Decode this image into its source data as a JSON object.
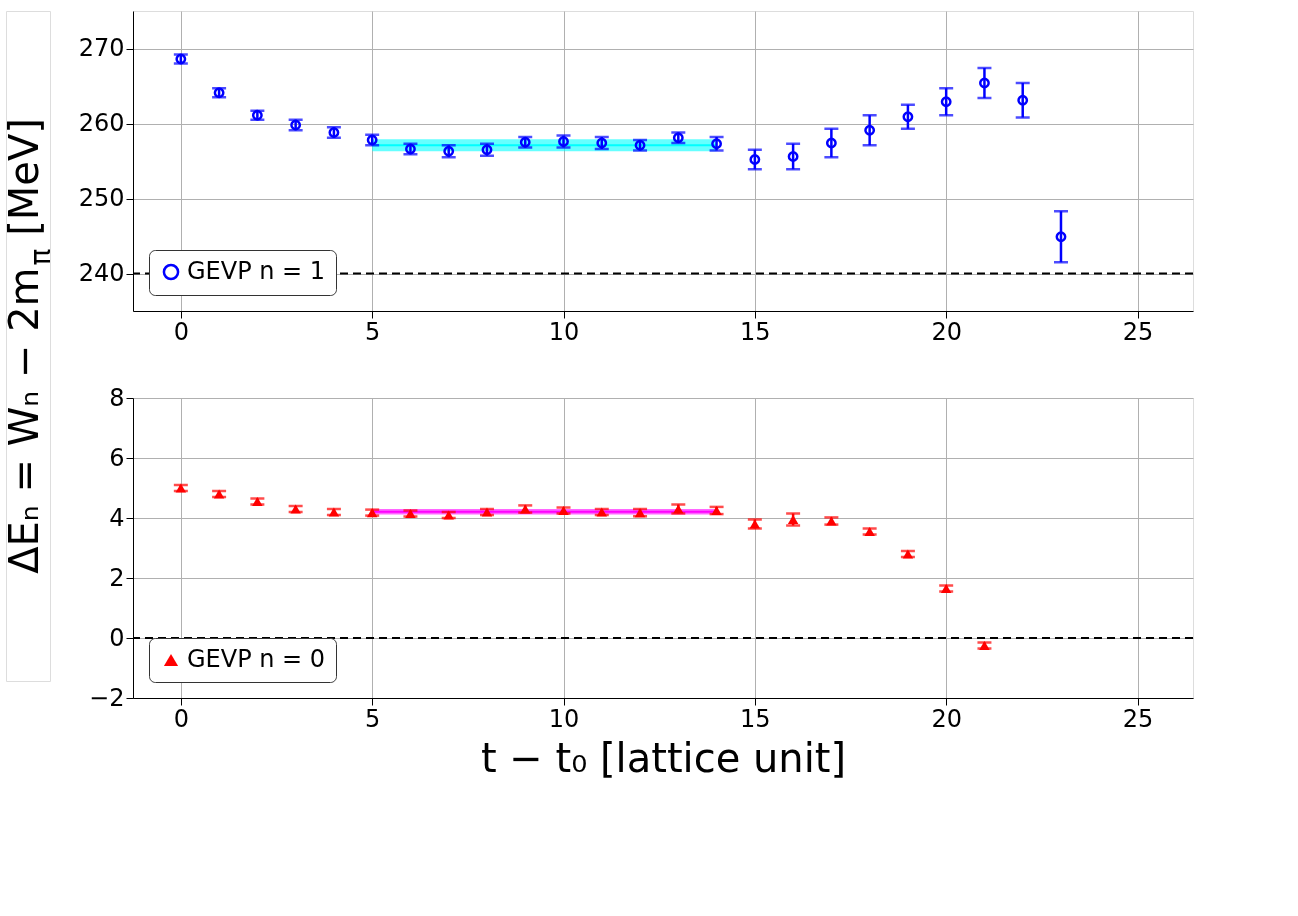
{
  "chart_data": [
    {
      "type": "scatter",
      "ylabel": "ΔEₙ = Wₙ − 2m$_{π}$ [MeV]",
      "xlim": [
        -1.25,
        26.45
      ],
      "xticks": [
        0,
        5,
        10,
        15,
        20,
        25
      ],
      "ylim": [
        235,
        275
      ],
      "yticks": [
        240,
        250,
        260,
        270
      ],
      "grid": true,
      "legend": "bottom left",
      "series": [
        {
          "type": "line",
          "color": "#00ffff",
          "x": [
            5,
            14
          ],
          "values": [
            257.1,
            257.1
          ],
          "lower": [
            256.3,
            256.3
          ],
          "upper": [
            257.9,
            257.9
          ]
        },
        {
          "name": "GEVP n = 1",
          "color": "#0000ff",
          "marker": "circle",
          "x": [
            0,
            1,
            2,
            3,
            4,
            5,
            6,
            7,
            8,
            9,
            10,
            11,
            12,
            13,
            14,
            15,
            16,
            17,
            18,
            19,
            20,
            21,
            22,
            23
          ],
          "values": [
            268.6,
            264.1,
            261.1,
            259.8,
            258.8,
            257.8,
            256.6,
            256.3,
            256.5,
            257.5,
            257.6,
            257.4,
            257.1,
            258.1,
            257.3,
            255.2,
            255.6,
            257.4,
            259.1,
            260.9,
            262.9,
            265.4,
            263.1,
            244.9
          ],
          "errors": [
            0.6,
            0.6,
            0.6,
            0.7,
            0.7,
            0.7,
            0.7,
            0.8,
            0.8,
            0.7,
            0.8,
            0.8,
            0.7,
            0.7,
            0.9,
            1.3,
            1.7,
            1.9,
            2.0,
            1.6,
            1.8,
            2.0,
            2.3,
            3.4
          ]
        }
      ],
      "ref_lines": [
        {
          "axis": "y",
          "value": 240,
          "color": "#000000",
          "line_style": "dashed"
        }
      ]
    },
    {
      "type": "scatter",
      "xlabel": "t − t₀ [lattice unit]",
      "xlim": [
        -1.25,
        26.45
      ],
      "xticks": [
        0,
        5,
        10,
        15,
        20,
        25
      ],
      "ylim": [
        -2,
        8
      ],
      "yticks": [
        -2,
        0,
        2,
        4,
        6,
        8
      ],
      "grid": true,
      "legend": "bottom left",
      "series": [
        {
          "type": "line",
          "color": "#ff00ff",
          "x": [
            5,
            14
          ],
          "values": [
            4.21,
            4.21
          ],
          "lower": [
            4.12,
            4.12
          ],
          "upper": [
            4.3,
            4.3
          ]
        },
        {
          "name": "GEVP n = 0",
          "color": "#ff0000",
          "marker": "triangle",
          "x": [
            0,
            1,
            2,
            3,
            4,
            5,
            6,
            7,
            8,
            9,
            10,
            11,
            12,
            13,
            14,
            15,
            16,
            17,
            18,
            19,
            20,
            21
          ],
          "values": [
            5.0,
            4.8,
            4.55,
            4.3,
            4.2,
            4.18,
            4.15,
            4.1,
            4.2,
            4.3,
            4.25,
            4.2,
            4.18,
            4.3,
            4.25,
            3.8,
            3.95,
            3.9,
            3.55,
            2.8,
            1.65,
            -0.25
          ],
          "errors": [
            0.1,
            0.1,
            0.1,
            0.1,
            0.1,
            0.1,
            0.1,
            0.1,
            0.1,
            0.12,
            0.1,
            0.1,
            0.12,
            0.15,
            0.12,
            0.15,
            0.2,
            0.12,
            0.1,
            0.1,
            0.1,
            0.1
          ]
        }
      ],
      "ref_lines": [
        {
          "axis": "y",
          "value": 0,
          "color": "#000000",
          "line_style": "dashed"
        }
      ]
    }
  ]
}
